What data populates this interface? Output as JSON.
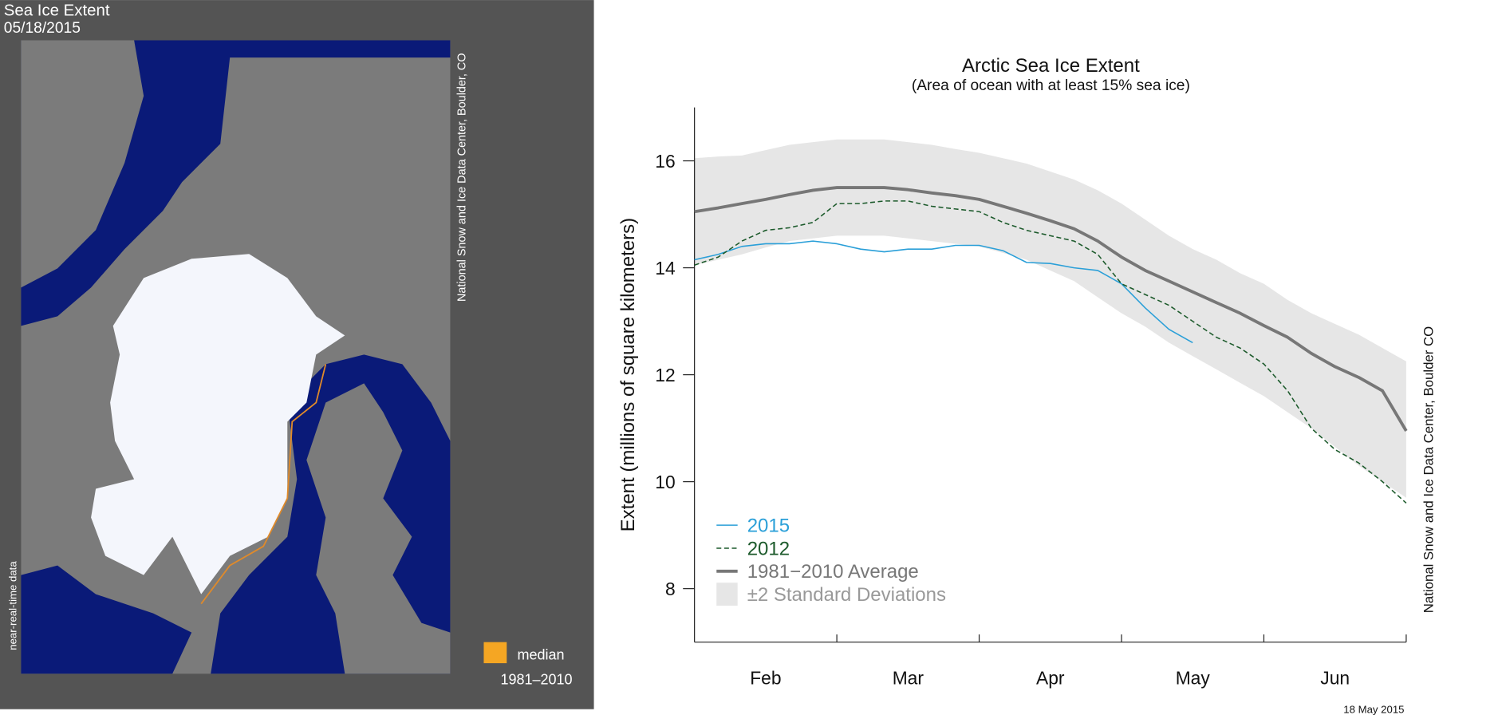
{
  "map_panel": {
    "title": "Sea Ice Extent",
    "date": "05/18/2015",
    "credit": "National Snow and Ice Data Center, Boulder, CO",
    "note": "near-real-time data",
    "legend_label": "median",
    "legend_period": "1981–2010"
  },
  "chart_data": {
    "type": "line",
    "title": "Arctic Sea Ice Extent",
    "subtitle": "(Area of ocean with at least 15% sea ice)",
    "y_label": "Extent (millions of square kilometers)",
    "credit": "National Snow and Ice Data Center, Boulder CO",
    "date_stamp": "18 May 2015",
    "categories": [
      null,
      null,
      null,
      "Feb",
      null,
      null,
      null,
      null,
      null,
      "Mar",
      null,
      null,
      null,
      null,
      null,
      "Apr",
      null,
      null,
      null,
      null,
      null,
      "May",
      null,
      null,
      null,
      null,
      null,
      "Jun",
      null,
      null,
      null
    ],
    "ylim": [
      7,
      17
    ],
    "yticks": [
      8,
      10,
      12,
      14,
      16
    ],
    "series": [
      {
        "name": "2015",
        "color": "#2a9fd8",
        "style": "solid",
        "values": [
          14.15,
          14.25,
          14.4,
          14.45,
          14.45,
          14.5,
          14.45,
          14.35,
          14.3,
          14.35,
          14.35,
          14.42,
          14.42,
          14.32,
          14.1,
          14.08,
          14.0,
          13.95,
          13.7,
          13.25,
          12.85,
          12.6,
          null,
          null,
          null,
          null,
          null,
          null,
          null,
          null,
          null
        ]
      },
      {
        "name": "2012",
        "color": "#1c5a2b",
        "style": "dashed",
        "values": [
          14.05,
          14.2,
          14.5,
          14.7,
          14.75,
          14.85,
          15.2,
          15.2,
          15.25,
          15.25,
          15.15,
          15.1,
          15.05,
          14.85,
          14.7,
          14.6,
          14.5,
          14.25,
          13.7,
          13.5,
          13.3,
          13.0,
          12.7,
          12.5,
          12.2,
          11.7,
          11.0,
          10.6,
          10.35,
          10.0,
          9.6
        ]
      },
      {
        "name": "1981−2010 Average",
        "color": "#777777",
        "style": "thick",
        "values": [
          15.05,
          15.12,
          15.2,
          15.28,
          15.37,
          15.45,
          15.5,
          15.5,
          15.5,
          15.46,
          15.4,
          15.35,
          15.28,
          15.15,
          15.02,
          14.88,
          14.73,
          14.5,
          14.2,
          13.95,
          13.75,
          13.55,
          13.35,
          13.15,
          12.92,
          12.7,
          12.4,
          12.15,
          11.95,
          11.7,
          10.95
        ]
      },
      {
        "name": "±2 Standard Deviations",
        "color": "#e6e6e6",
        "style": "band",
        "upper": [
          16.05,
          16.08,
          16.1,
          16.2,
          16.3,
          16.35,
          16.4,
          16.4,
          16.4,
          16.35,
          16.3,
          16.22,
          16.15,
          16.05,
          15.95,
          15.8,
          15.65,
          15.45,
          15.2,
          14.9,
          14.6,
          14.35,
          14.15,
          13.9,
          13.7,
          13.4,
          13.15,
          12.95,
          12.75,
          12.5,
          12.25
        ],
        "lower": [
          14.05,
          14.15,
          14.25,
          14.38,
          14.5,
          14.55,
          14.6,
          14.6,
          14.6,
          14.55,
          14.5,
          14.45,
          14.4,
          14.28,
          14.15,
          13.95,
          13.75,
          13.45,
          13.15,
          12.9,
          12.6,
          12.35,
          12.1,
          11.85,
          11.6,
          11.3,
          11.0,
          10.65,
          10.3,
          10.0,
          9.7
        ]
      }
    ]
  }
}
